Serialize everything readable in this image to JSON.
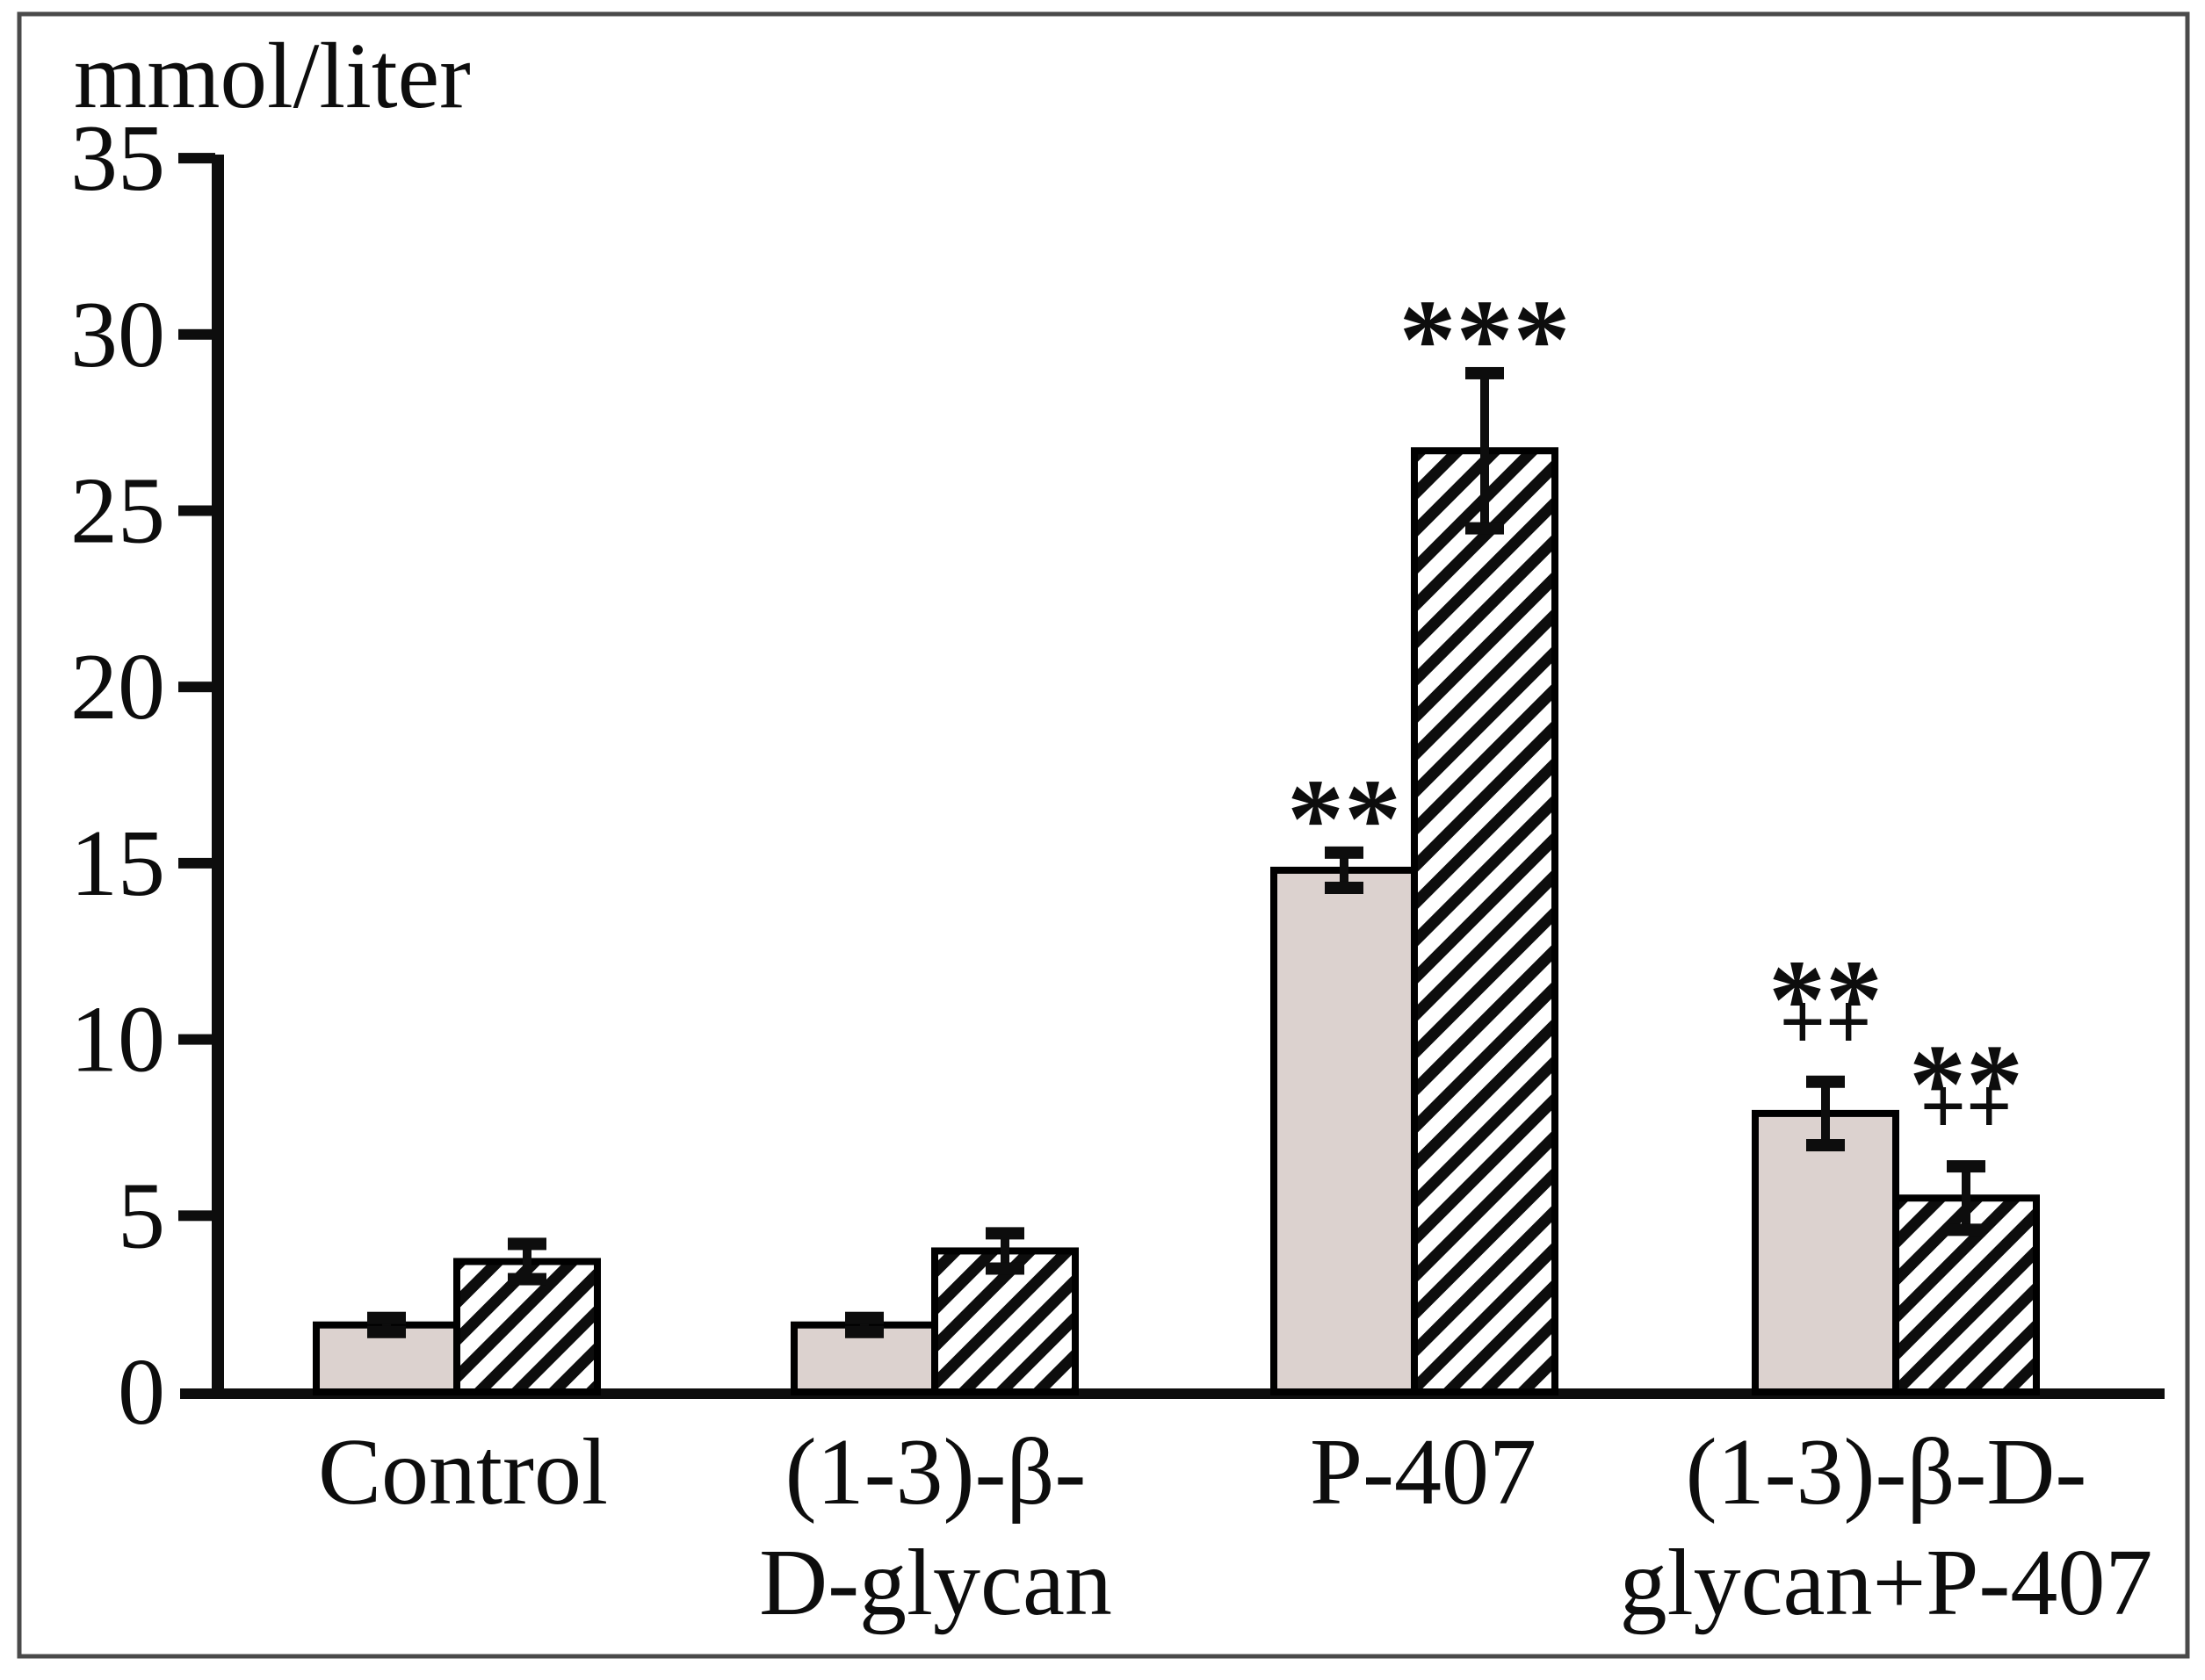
{
  "chart_data": {
    "type": "bar",
    "title": "",
    "ylabel": "mmol/liter",
    "xlabel": "",
    "ylim": [
      0,
      35
    ],
    "y_tick_step": 5,
    "y_ticks_top_to_bottom": [
      35,
      30,
      25,
      20,
      15,
      10,
      5,
      0
    ],
    "grid": false,
    "legend": "none",
    "hatch_direction": "bottom-left-to-top-right",
    "categories": [
      "Control",
      "(1-3)-β-D-glycan",
      "P-407",
      "(1-3)-β-D-glycan+P-407"
    ],
    "groups": [
      {
        "key": "control",
        "label_lines": [
          "Control"
        ]
      },
      {
        "key": "13-beta-d-glycan",
        "label_lines": [
          "(1-3)-β-",
          "D-glycan"
        ]
      },
      {
        "key": "p-407",
        "label_lines": [
          "P-407"
        ]
      },
      {
        "key": "13-beta-d-glycan-p-407",
        "label_lines": [
          "(1-3)-β-D-",
          "glycan+P-407"
        ]
      }
    ],
    "series": [
      {
        "key": "solid",
        "pattern": "solid",
        "fill": "#dcd2cf",
        "values": [
          1.9,
          1.9,
          14.8,
          7.9
        ],
        "errors": [
          0.2,
          0.2,
          0.5,
          0.9
        ],
        "significance": [
          [],
          [],
          [
            "**"
          ],
          [
            "**",
            "++"
          ]
        ]
      },
      {
        "key": "hatched",
        "pattern": "diagonal-hatch",
        "fill": "#ffffff",
        "hatch_color": "#0d0d0d",
        "values": [
          3.7,
          4.0,
          26.7,
          5.5
        ],
        "errors": [
          0.5,
          0.5,
          2.2,
          0.9
        ],
        "significance": [
          [],
          [],
          [
            "***"
          ],
          [
            "**",
            "++"
          ]
        ]
      }
    ],
    "colors": {
      "frame": "#4a4a4a",
      "axis": "#0d0d0d",
      "bar_border": "#000000",
      "solid_fill": "#dcd2cf",
      "background": "#ffffff"
    }
  }
}
